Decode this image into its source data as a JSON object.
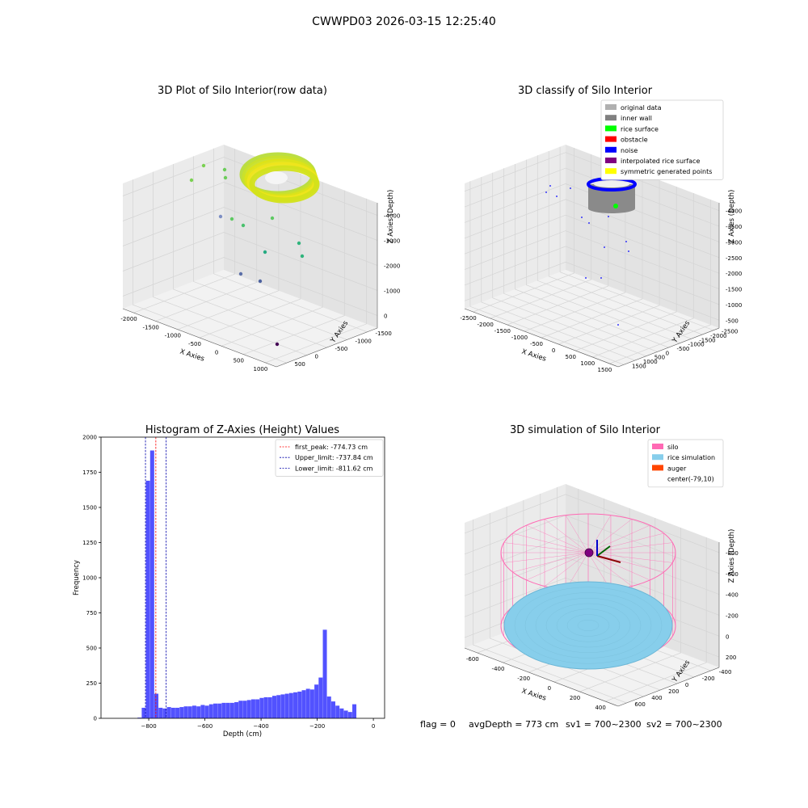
{
  "suptitle": "CWWPD03 2026-03-15 12:25:40",
  "chart_data": [
    {
      "type": "scatter",
      "title": "3D Plot of Silo Interior(row data)",
      "xlabel": "X Axies",
      "ylabel": "Y Axies",
      "zlabel": "Z Axies (Depth)",
      "x_ticks": [
        "-2000",
        "-1500",
        "-1000",
        "-500",
        "0",
        "500",
        "1000"
      ],
      "y_ticks": [
        "500",
        "0",
        "-500",
        "-1000",
        "-1500"
      ],
      "z_ticks": [
        "0",
        "-1000",
        "-2000",
        "-3000",
        "-4000"
      ],
      "colormap": "viridis"
    },
    {
      "type": "scatter",
      "title": "3D classify of Silo Interior",
      "xlabel": "X Axies",
      "ylabel": "Y Axies",
      "zlabel": "Z Axies (Depth)",
      "x_ticks": [
        "-2500",
        "-2000",
        "-1500",
        "-1000",
        "-500",
        "0",
        "500",
        "1000",
        "1500"
      ],
      "y_ticks": [
        "1500",
        "1000",
        "500",
        "0",
        "-500",
        "-1000",
        "-1500",
        "-2000",
        "-2500"
      ],
      "z_ticks": [
        "-500",
        "-1000",
        "-1500",
        "-2000",
        "-2500",
        "-3000",
        "-3500",
        "-4000"
      ],
      "legend": [
        {
          "label": "original data",
          "color": "#b0b0b0"
        },
        {
          "label": "inner wall",
          "color": "#808080"
        },
        {
          "label": "rice surface",
          "color": "#00ff00"
        },
        {
          "label": "obstacle",
          "color": "#ff0000"
        },
        {
          "label": "noise",
          "color": "#0000ff"
        },
        {
          "label": "interpolated rice surface",
          "color": "#800080"
        },
        {
          "label": "symmetric generated points",
          "color": "#ffff00"
        }
      ],
      "legend_position": "top-right"
    },
    {
      "type": "bar",
      "title": "Histogram of Z-Axies (Height) Values",
      "xlabel": "Depth (cm)",
      "ylabel": "Frequency",
      "xlim": [
        -970,
        40
      ],
      "ylim": [
        0,
        2000
      ],
      "x_ticks": [
        -800,
        -600,
        -400,
        -200,
        0
      ],
      "y_ticks": [
        0,
        250,
        500,
        750,
        1000,
        1250,
        1500,
        1750,
        2000
      ],
      "bar_color": "#0000ff",
      "bin_width": 15,
      "bins": [
        [
          -840,
          5
        ],
        [
          -825,
          75
        ],
        [
          -810,
          1690
        ],
        [
          -795,
          1905
        ],
        [
          -780,
          175
        ],
        [
          -765,
          75
        ],
        [
          -750,
          70
        ],
        [
          -735,
          80
        ],
        [
          -720,
          75
        ],
        [
          -705,
          75
        ],
        [
          -690,
          80
        ],
        [
          -675,
          85
        ],
        [
          -660,
          85
        ],
        [
          -645,
          90
        ],
        [
          -630,
          85
        ],
        [
          -615,
          95
        ],
        [
          -600,
          90
        ],
        [
          -585,
          100
        ],
        [
          -570,
          105
        ],
        [
          -555,
          105
        ],
        [
          -540,
          110
        ],
        [
          -525,
          110
        ],
        [
          -510,
          110
        ],
        [
          -495,
          115
        ],
        [
          -480,
          125
        ],
        [
          -465,
          125
        ],
        [
          -450,
          130
        ],
        [
          -435,
          135
        ],
        [
          -420,
          135
        ],
        [
          -405,
          145
        ],
        [
          -390,
          150
        ],
        [
          -375,
          150
        ],
        [
          -360,
          160
        ],
        [
          -345,
          165
        ],
        [
          -330,
          170
        ],
        [
          -315,
          175
        ],
        [
          -300,
          180
        ],
        [
          -285,
          185
        ],
        [
          -270,
          190
        ],
        [
          -255,
          200
        ],
        [
          -240,
          210
        ],
        [
          -225,
          205
        ],
        [
          -210,
          240
        ],
        [
          -195,
          290
        ],
        [
          -180,
          630
        ],
        [
          -165,
          155
        ],
        [
          -150,
          120
        ],
        [
          -135,
          90
        ],
        [
          -120,
          70
        ],
        [
          -105,
          55
        ],
        [
          -90,
          45
        ],
        [
          -75,
          100
        ]
      ],
      "reference_lines": [
        {
          "label": "first_peak: -774.73 cm",
          "value": -774.73,
          "color": "#ff0000"
        },
        {
          "label": "Upper_limit: -737.84 cm",
          "value": -737.84,
          "color": "#0000aa"
        },
        {
          "label": "Lower_limit: -811.62 cm",
          "value": -811.62,
          "color": "#0000aa"
        }
      ],
      "legend_position": "top-right"
    },
    {
      "type": "scatter",
      "title": "3D simulation of Silo Interior",
      "xlabel": "X Axies",
      "ylabel": "Y Axies",
      "zlabel": "Z Axies (Depth)",
      "x_ticks": [
        "-600",
        "-400",
        "-200",
        "0",
        "200",
        "400"
      ],
      "y_ticks": [
        "600",
        "400",
        "200",
        "0",
        "-200",
        "-400"
      ],
      "z_ticks": [
        "200",
        "0",
        "-200",
        "-400",
        "-600",
        "-800"
      ],
      "legend": [
        {
          "label": "silo",
          "color": "#ff69b4"
        },
        {
          "label": "rice simulation",
          "color": "#87ceeb"
        },
        {
          "label": "auger",
          "color": "#ff4500"
        },
        {
          "label": "center(-79,10)",
          "color": ""
        }
      ],
      "legend_position": "top-right"
    }
  ],
  "status_line": {
    "flag": "flag = 0",
    "avg_depth": "avgDepth = 773 cm",
    "sv1": "sv1 = 700~2300",
    "sv2": "sv2 = 700~2300"
  }
}
